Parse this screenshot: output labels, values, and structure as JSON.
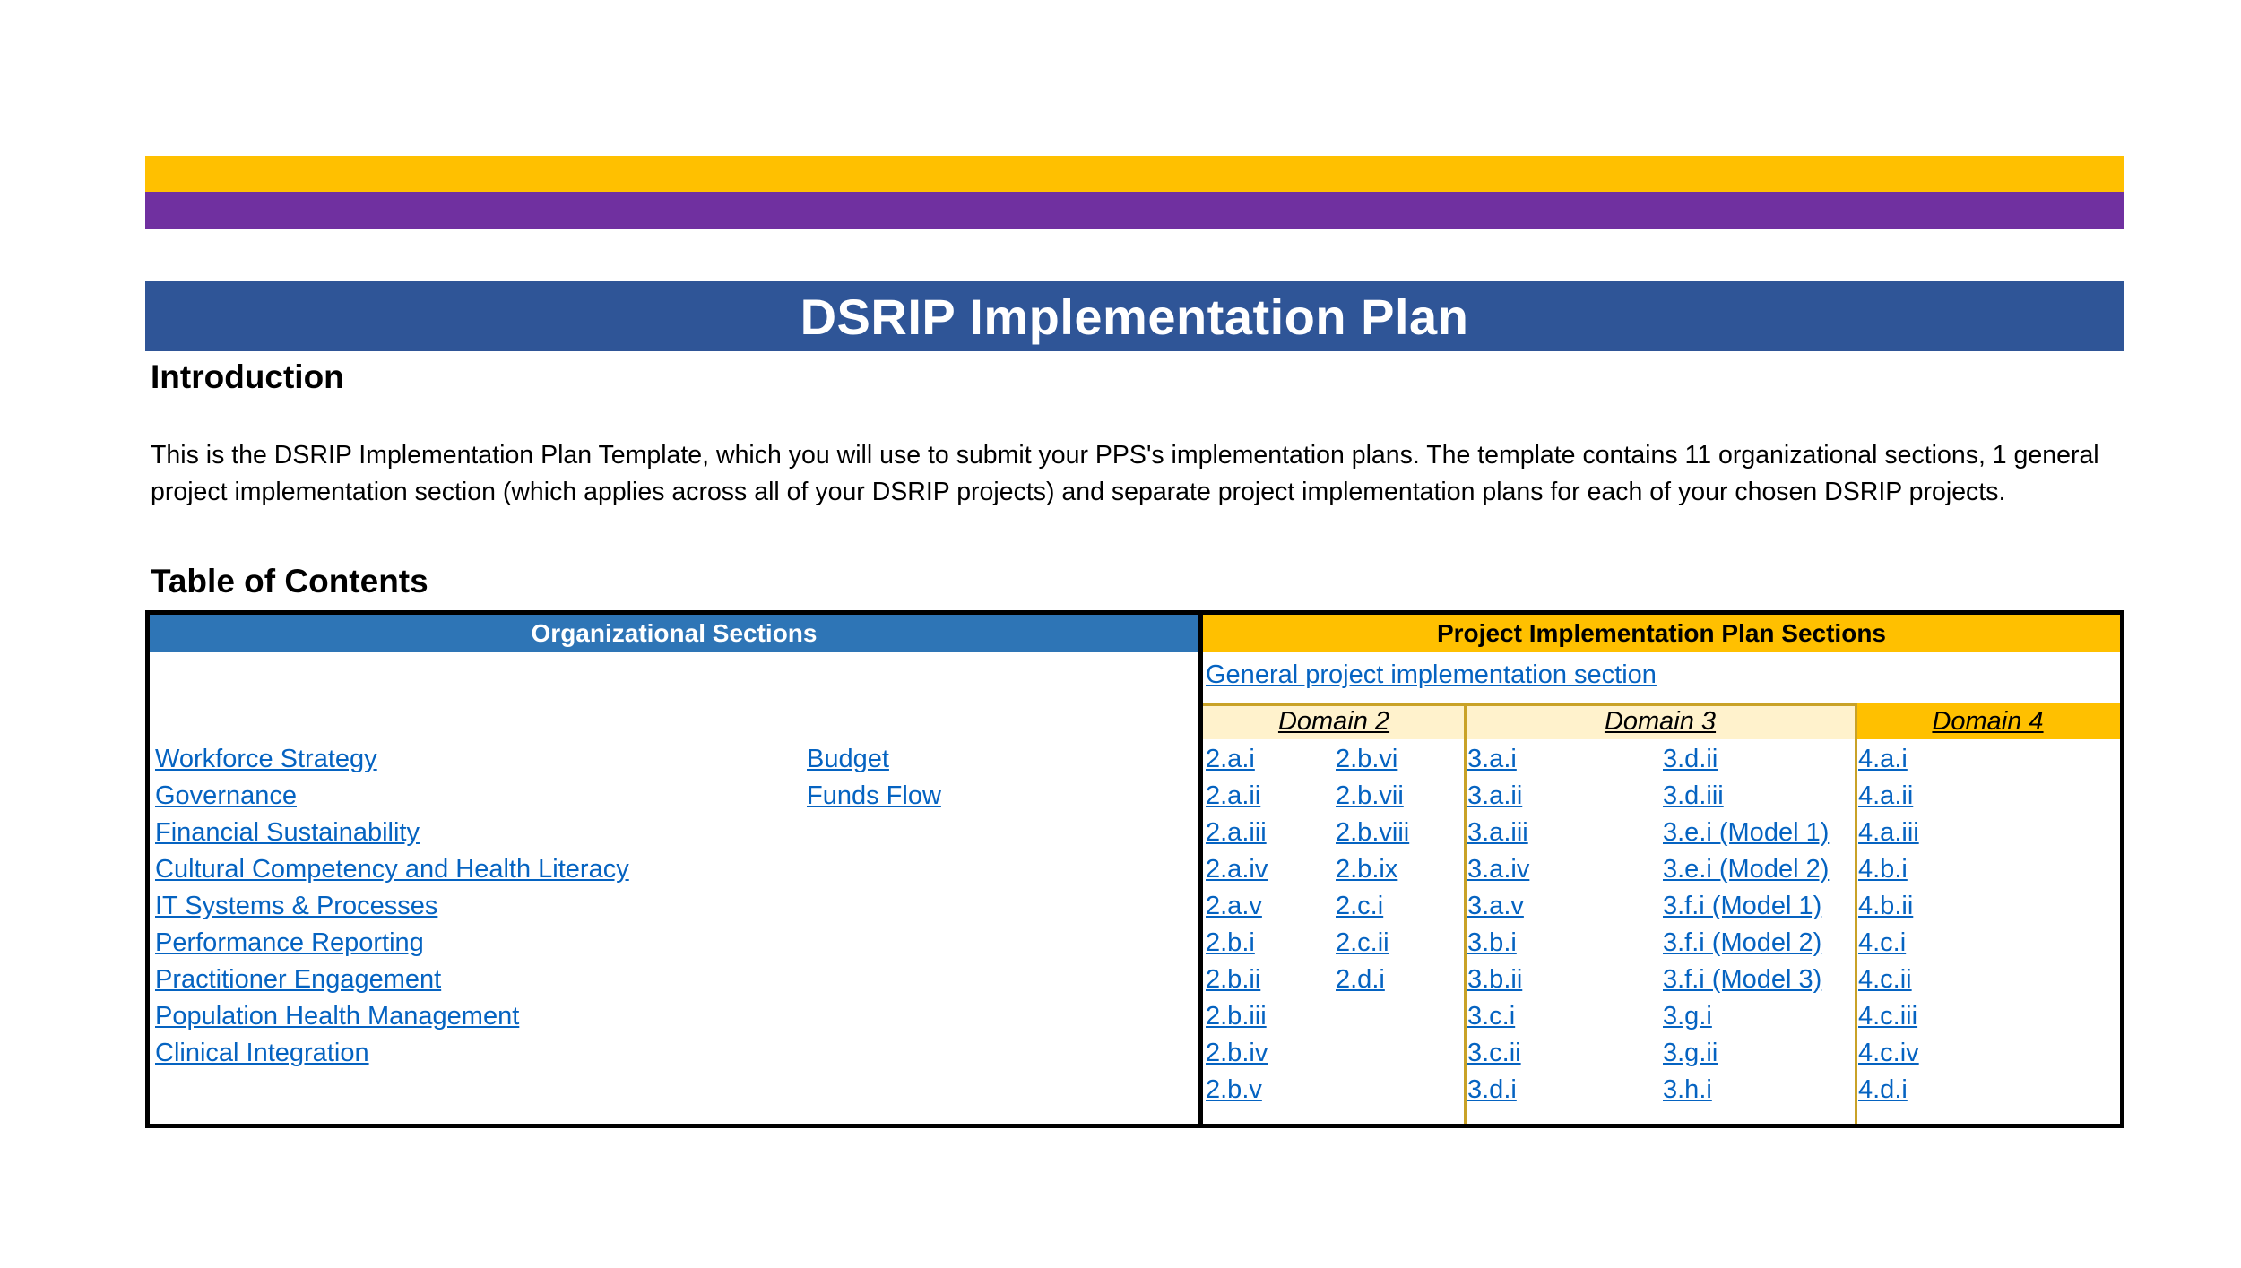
{
  "colors": {
    "gold": "#ffc000",
    "purple": "#7030a0",
    "title_blue": "#2f5597",
    "org_header_blue": "#2e75b6",
    "light_gold": "#fff2cc",
    "link_blue": "#0563c1"
  },
  "title": "DSRIP Implementation Plan",
  "intro": {
    "heading": "Introduction",
    "text": "This is the DSRIP Implementation Plan Template, which you will use to submit your PPS's implementation plans. The template contains 11 organizational sections, 1 general project implementation section (which applies across all of your DSRIP projects) and separate project implementation plans for each of your chosen DSRIP projects."
  },
  "toc": {
    "heading": "Table of Contents",
    "org_header": "Organizational Sections",
    "proj_header": "Project Implementation Plan Sections",
    "general_link": "General project implementation section",
    "org_col1": [
      "Workforce Strategy",
      "Governance",
      "Financial Sustainability",
      "Cultural Competency and Health Literacy",
      "IT Systems & Processes",
      "Performance Reporting",
      "Practitioner Engagement",
      "Population Health Management",
      "Clinical Integration"
    ],
    "org_col2": [
      "Budget",
      "Funds Flow"
    ],
    "domains": [
      "Domain 2",
      "Domain 3",
      "Domain 4"
    ],
    "domain2_a": [
      "2.a.i",
      "2.a.ii",
      "2.a.iii",
      "2.a.iv",
      "2.a.v",
      "2.b.i",
      "2.b.ii",
      "2.b.iii",
      "2.b.iv",
      "2.b.v"
    ],
    "domain2_b": [
      "2.b.vi",
      "2.b.vii",
      "2.b.viii",
      "2.b.ix",
      "2.c.i",
      "2.c.ii",
      "2.d.i"
    ],
    "domain3_a": [
      "3.a.i",
      "3.a.ii",
      "3.a.iii",
      "3.a.iv",
      "3.a.v",
      "3.b.i",
      "3.b.ii",
      "3.c.i",
      "3.c.ii",
      "3.d.i"
    ],
    "domain3_b": [
      "3.d.ii",
      "3.d.iii",
      "3.e.i (Model 1)",
      "3.e.i (Model 2)",
      "3.f.i (Model 1)",
      "3.f.i (Model 2)",
      "3.f.i (Model 3)",
      "3.g.i",
      "3.g.ii",
      "3.h.i"
    ],
    "domain4": [
      "4.a.i",
      "4.a.ii",
      "4.a.iii",
      "4.b.i",
      "4.b.ii",
      "4.c.i",
      "4.c.ii",
      "4.c.iii",
      "4.c.iv",
      "4.d.i"
    ]
  }
}
